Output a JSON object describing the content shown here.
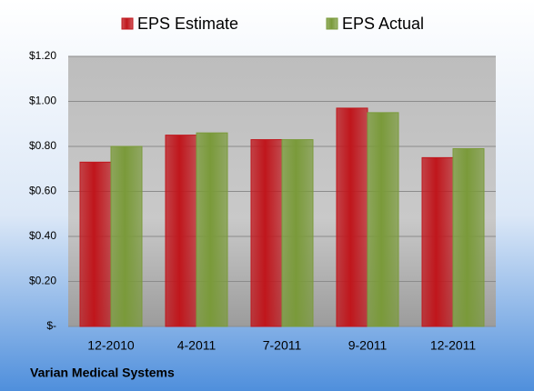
{
  "chart_data": {
    "type": "bar",
    "categories": [
      "12-2010",
      "4-2011",
      "7-2011",
      "9-2011",
      "12-2011"
    ],
    "series": [
      {
        "name": "EPS Estimate",
        "color": "#c0161c",
        "values": [
          0.73,
          0.85,
          0.83,
          0.97,
          0.75
        ]
      },
      {
        "name": "EPS Actual",
        "color": "#7a9a3a",
        "values": [
          0.8,
          0.86,
          0.83,
          0.95,
          0.79
        ]
      }
    ],
    "ylim": [
      0,
      1.2
    ],
    "yticks": [
      {
        "value": 0,
        "label": "$-"
      },
      {
        "value": 0.2,
        "label": "$0.20"
      },
      {
        "value": 0.4,
        "label": "$0.40"
      },
      {
        "value": 0.6,
        "label": "$0.60"
      },
      {
        "value": 0.8,
        "label": "$0.80"
      },
      {
        "value": 1.0,
        "label": "$1.00"
      },
      {
        "value": 1.2,
        "label": "$1.20"
      }
    ],
    "grid": true,
    "legend": "top",
    "source": "Varian Medical Systems"
  }
}
